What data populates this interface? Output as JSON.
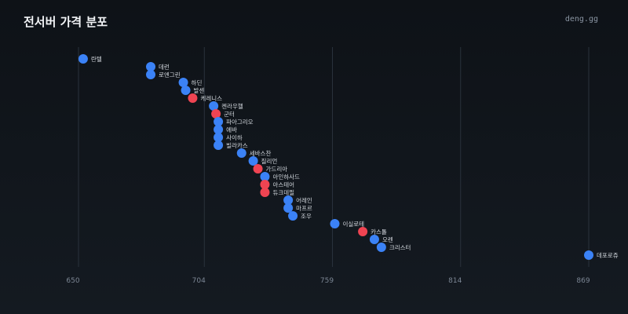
{
  "header": {
    "title": "전서버 가격 분포",
    "brand": "deng.gg"
  },
  "colors": {
    "background": "#10151b",
    "grid": "#2a323c",
    "tick_text": "#7c8694",
    "label_text": "#d4d9df",
    "blue": "#3b82f6",
    "red": "#ef4452"
  },
  "chart_data": {
    "type": "scatter",
    "title": "전서버 가격 분포",
    "xlabel": "",
    "ylabel": "",
    "xlim": [
      650,
      869
    ],
    "xticks": [
      650,
      704,
      759,
      814,
      869
    ],
    "grid": true,
    "points": [
      {
        "name": "란텔",
        "value": 652,
        "color": "blue"
      },
      {
        "name": "데런",
        "value": 681,
        "color": "blue"
      },
      {
        "name": "로엔그린",
        "value": 681,
        "color": "blue"
      },
      {
        "name": "하딘",
        "value": 695,
        "color": "blue"
      },
      {
        "name": "발센",
        "value": 696,
        "color": "blue"
      },
      {
        "name": "케레니스",
        "value": 699,
        "color": "red"
      },
      {
        "name": "켄라우헬",
        "value": 708,
        "color": "blue"
      },
      {
        "name": "군터",
        "value": 709,
        "color": "red"
      },
      {
        "name": "파아그리오",
        "value": 710,
        "color": "blue"
      },
      {
        "name": "에바",
        "value": 710,
        "color": "blue"
      },
      {
        "name": "사이하",
        "value": 710,
        "color": "blue"
      },
      {
        "name": "빌라카스",
        "value": 710,
        "color": "blue"
      },
      {
        "name": "세바스찬",
        "value": 720,
        "color": "blue"
      },
      {
        "name": "질리언",
        "value": 725,
        "color": "blue"
      },
      {
        "name": "가드리아",
        "value": 727,
        "color": "red"
      },
      {
        "name": "아인하사드",
        "value": 730,
        "color": "blue"
      },
      {
        "name": "아스테어",
        "value": 730,
        "color": "red"
      },
      {
        "name": "듀크데필",
        "value": 730,
        "color": "red"
      },
      {
        "name": "어레인",
        "value": 740,
        "color": "blue"
      },
      {
        "name": "마프르",
        "value": 740,
        "color": "blue"
      },
      {
        "name": "조우",
        "value": 742,
        "color": "blue"
      },
      {
        "name": "이실로테",
        "value": 760,
        "color": "blue"
      },
      {
        "name": "카스톨",
        "value": 772,
        "color": "red"
      },
      {
        "name": "오렌",
        "value": 777,
        "color": "blue"
      },
      {
        "name": "크리스터",
        "value": 780,
        "color": "blue"
      },
      {
        "name": "데포로쥬",
        "value": 869,
        "color": "blue"
      }
    ]
  }
}
